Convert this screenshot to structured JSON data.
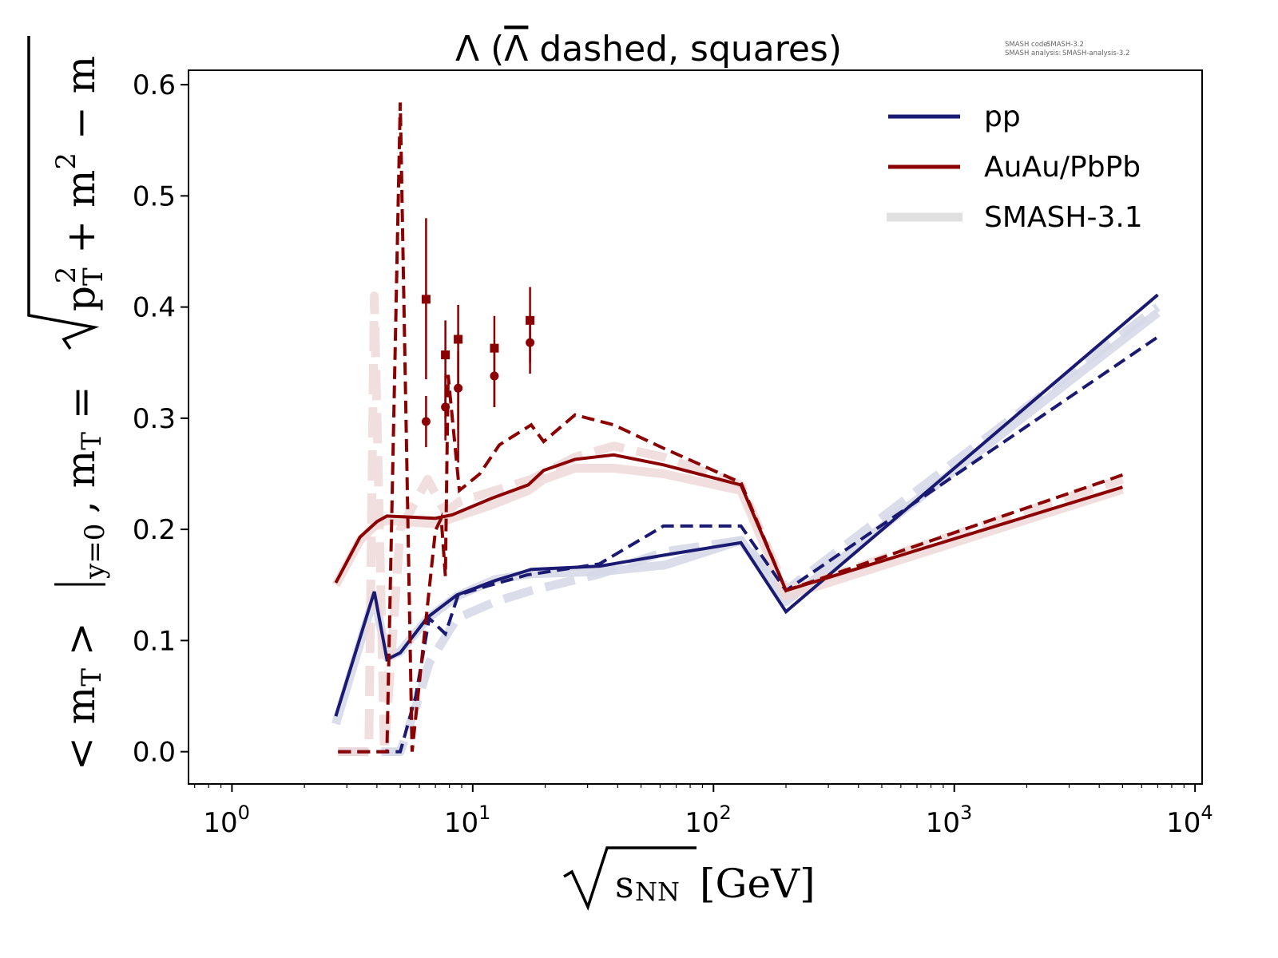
{
  "chart_data": {
    "type": "line",
    "title": "Λ (Λ̅ dashed, squares)",
    "title_parts": {
      "main": "Λ (",
      "bar": "Λ",
      "rest": " dashed, squares)"
    },
    "meta": {
      "code_label": "SMASH code:",
      "code_value": "SMASH-3.2",
      "analysis_label": "SMASH analysis:",
      "analysis_value": "SMASH-analysis-3.2"
    },
    "xlabel": "√sNN [GeV]",
    "xlabel_parts": {
      "var": "s",
      "sub": "NN",
      "unit": "[GeV]"
    },
    "ylabel": "< mT > |y=0, mT = √(pT² + m²) − m",
    "xscale": "log",
    "xlim": [
      0.66,
      10700
    ],
    "ylim": [
      -0.029,
      0.613
    ],
    "x_ticks": [
      {
        "value": 1,
        "base": "10",
        "exp": "0"
      },
      {
        "value": 10,
        "base": "10",
        "exp": "1"
      },
      {
        "value": 100,
        "base": "10",
        "exp": "2"
      },
      {
        "value": 1000,
        "base": "10",
        "exp": "3"
      },
      {
        "value": 10000,
        "base": "10",
        "exp": "4"
      }
    ],
    "y_ticks": [
      {
        "value": 0.0,
        "label": "0.0"
      },
      {
        "value": 0.1,
        "label": "0.1"
      },
      {
        "value": 0.2,
        "label": "0.2"
      },
      {
        "value": 0.3,
        "label": "0.3"
      },
      {
        "value": 0.4,
        "label": "0.4"
      },
      {
        "value": 0.5,
        "label": "0.5"
      },
      {
        "value": 0.6,
        "label": "0.6"
      }
    ],
    "grid": false,
    "legend_position": "top-right",
    "legend": [
      {
        "label": "pp",
        "color": "#1a1a73",
        "style": "solid"
      },
      {
        "label": "AuAu/PbPb",
        "color": "#8b0000",
        "style": "solid"
      },
      {
        "label": "SMASH-3.1",
        "color": "#e0e0e0",
        "style": "thick"
      }
    ],
    "colors": {
      "pp": "#1a1a73",
      "auau": "#8b0000",
      "pp_ref": "#d5d8e6",
      "auau_ref": "#efd8d8"
    },
    "reference_series": [
      {
        "name": "SMASH-3.1 pp Λ",
        "color_key": "pp_ref",
        "dashed": false,
        "x": [
          2.7,
          3.9,
          4.4,
          5.0,
          6.5,
          8.6,
          12.4,
          17.5,
          33.8,
          63,
          130,
          200,
          7000
        ],
        "y": [
          0.025,
          0.14,
          0.085,
          0.09,
          0.12,
          0.14,
          0.155,
          0.16,
          0.162,
          0.168,
          0.19,
          0.135,
          0.395
        ]
      },
      {
        "name": "SMASH-3.1 pp anti-Λ",
        "color_key": "pp_ref",
        "dashed": true,
        "x": [
          2.76,
          5.0,
          5.8,
          6.6,
          8.6,
          12.4,
          17.5,
          33.8,
          63,
          130,
          200,
          7000
        ],
        "y": [
          0.0,
          0.0,
          0.04,
          0.08,
          0.12,
          0.135,
          0.145,
          0.16,
          0.18,
          0.19,
          0.145,
          0.4
        ]
      },
      {
        "name": "SMASH-3.1 AuAu Λ",
        "color_key": "auau_ref",
        "dashed": false,
        "x": [
          2.7,
          3.4,
          4.0,
          4.4,
          7.0,
          8.2,
          12,
          17,
          19.7,
          26.6,
          38.5,
          62,
          130,
          200,
          5000
        ],
        "y": [
          0.15,
          0.19,
          0.205,
          0.208,
          0.205,
          0.21,
          0.222,
          0.235,
          0.245,
          0.255,
          0.255,
          0.25,
          0.235,
          0.14,
          0.236
        ]
      },
      {
        "name": "SMASH-3.1 AuAu anti-Λ",
        "color_key": "auau_ref",
        "dashed": true,
        "x": [
          2.76,
          3.7,
          3.9,
          4.3,
          5.0,
          6.5,
          7.7,
          8.8,
          12.4,
          17.5,
          26.6,
          38.5,
          62,
          130,
          200,
          5000
        ],
        "y": [
          0.0,
          0.0,
          0.41,
          0.0,
          0.2,
          0.245,
          0.215,
          0.225,
          0.235,
          0.245,
          0.265,
          0.275,
          0.265,
          0.24,
          0.145,
          0.245
        ]
      }
    ],
    "series": [
      {
        "name": "pp Λ",
        "color_key": "pp",
        "dashed": false,
        "x": [
          2.7,
          3.9,
          4.4,
          5.0,
          6.5,
          8.6,
          12.4,
          17.5,
          33.8,
          63,
          130,
          200,
          7000
        ],
        "y": [
          0.032,
          0.144,
          0.083,
          0.089,
          0.121,
          0.141,
          0.154,
          0.164,
          0.167,
          0.177,
          0.188,
          0.126,
          0.411
        ]
      },
      {
        "name": "pp anti-Λ",
        "color_key": "pp",
        "dashed": true,
        "x": [
          2.76,
          5.0,
          5.8,
          6.6,
          7.7,
          8.7,
          11.5,
          16.8,
          33.6,
          62,
          130,
          200,
          7000
        ],
        "y": [
          0.0,
          0.0,
          0.05,
          0.12,
          0.106,
          0.141,
          0.149,
          0.159,
          0.169,
          0.203,
          0.203,
          0.145,
          0.373
        ]
      },
      {
        "name": "AuAu/PbPb Λ",
        "color_key": "auau",
        "dashed": false,
        "x": [
          2.7,
          3.4,
          4.0,
          4.4,
          7.0,
          8.2,
          12,
          17,
          19.7,
          26.6,
          38.5,
          62,
          130,
          200,
          5000
        ],
        "y": [
          0.152,
          0.193,
          0.207,
          0.212,
          0.21,
          0.213,
          0.228,
          0.24,
          0.253,
          0.263,
          0.267,
          0.258,
          0.24,
          0.145,
          0.238
        ]
      },
      {
        "name": "AuAu/PbPb anti-Λ",
        "color_key": "auau",
        "dashed": true,
        "x": [
          2.76,
          4.4,
          5.0,
          5.6,
          7.0,
          7.4,
          7.7,
          7.9,
          8.8,
          10.7,
          12.9,
          17.5,
          19.7,
          26.6,
          38.5,
          62,
          130,
          200,
          5000
        ],
        "y": [
          0.0,
          0.0,
          0.584,
          0.0,
          0.199,
          0.21,
          0.158,
          0.339,
          0.235,
          0.25,
          0.276,
          0.294,
          0.279,
          0.303,
          0.294,
          0.273,
          0.242,
          0.145,
          0.249
        ]
      }
    ],
    "measurements": [
      {
        "name": "Λ data (circles)",
        "marker": "circle",
        "color_key": "auau",
        "points": [
          {
            "x": 6.4,
            "y": 0.297,
            "ylo": 0.274,
            "yhi": 0.32
          },
          {
            "x": 7.7,
            "y": 0.31,
            "ylo": 0.28,
            "yhi": 0.34
          },
          {
            "x": 8.7,
            "y": 0.327,
            "ylo": 0.29,
            "yhi": 0.36
          },
          {
            "x": 12.3,
            "y": 0.338,
            "ylo": 0.31,
            "yhi": 0.36
          },
          {
            "x": 17.3,
            "y": 0.368,
            "ylo": 0.34,
            "yhi": 0.39
          }
        ]
      },
      {
        "name": "anti-Λ data (squares)",
        "marker": "square",
        "color_key": "auau",
        "points": [
          {
            "x": 6.4,
            "y": 0.407,
            "ylo": 0.335,
            "yhi": 0.48
          },
          {
            "x": 7.7,
            "y": 0.357,
            "ylo": 0.3,
            "yhi": 0.388
          },
          {
            "x": 8.7,
            "y": 0.371,
            "ylo": 0.26,
            "yhi": 0.402
          },
          {
            "x": 12.3,
            "y": 0.363,
            "ylo": 0.31,
            "yhi": 0.392
          },
          {
            "x": 17.3,
            "y": 0.388,
            "ylo": 0.35,
            "yhi": 0.418
          }
        ]
      }
    ]
  }
}
